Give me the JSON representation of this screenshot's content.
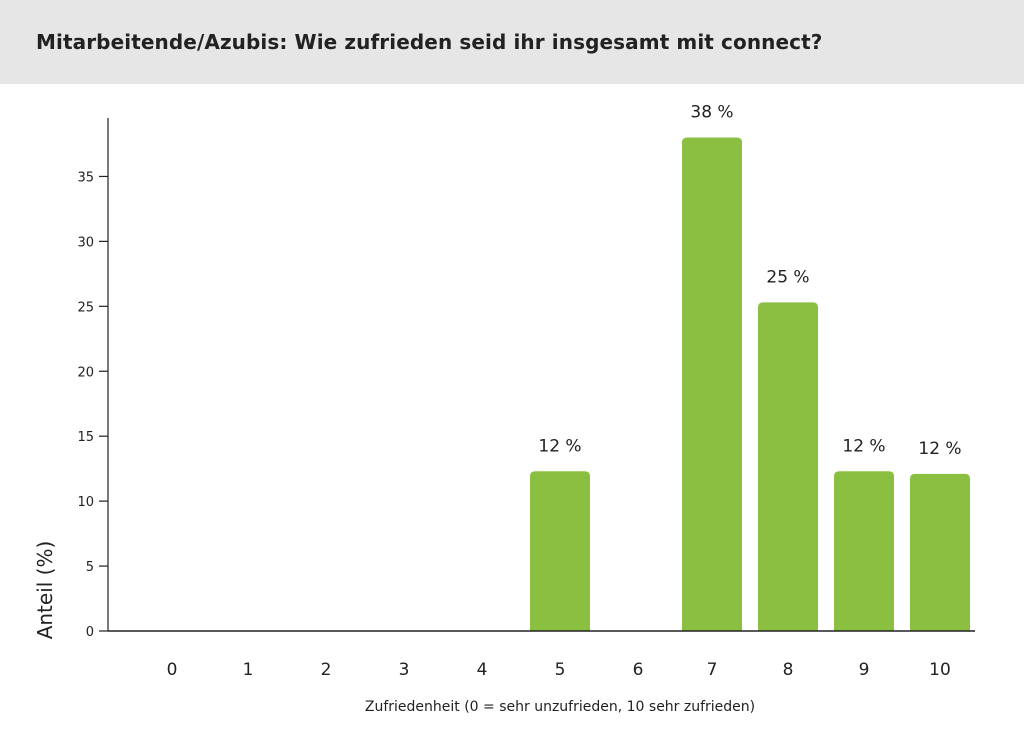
{
  "header": {
    "title": "Mitarbeitende/Azubis: Wie zufrieden seid ihr insgesamt mit connect?"
  },
  "chart_data": {
    "type": "bar",
    "title": "Mitarbeitende/Azubis: Wie zufrieden seid ihr insgesamt mit connect?",
    "xlabel": "Zufriedenheit (0 = sehr unzufrieden, 10 sehr zufrieden)",
    "ylabel": "Anteil (%)",
    "categories": [
      "0",
      "1",
      "2",
      "3",
      "4",
      "5",
      "6",
      "7",
      "8",
      "9",
      "10"
    ],
    "values": [
      0,
      0,
      0,
      0,
      0,
      12.3,
      0,
      38,
      25.3,
      12.3,
      12.1
    ],
    "data_labels": [
      "",
      "",
      "",
      "",
      "",
      "12 %",
      "",
      "38 %",
      "25 %",
      "12 %",
      "12 %"
    ],
    "yticks": [
      0,
      5,
      10,
      15,
      20,
      25,
      30,
      35
    ],
    "ylim": [
      0,
      39.5
    ],
    "grid": false,
    "legend": "none",
    "bar_color": "#8bbf41"
  }
}
